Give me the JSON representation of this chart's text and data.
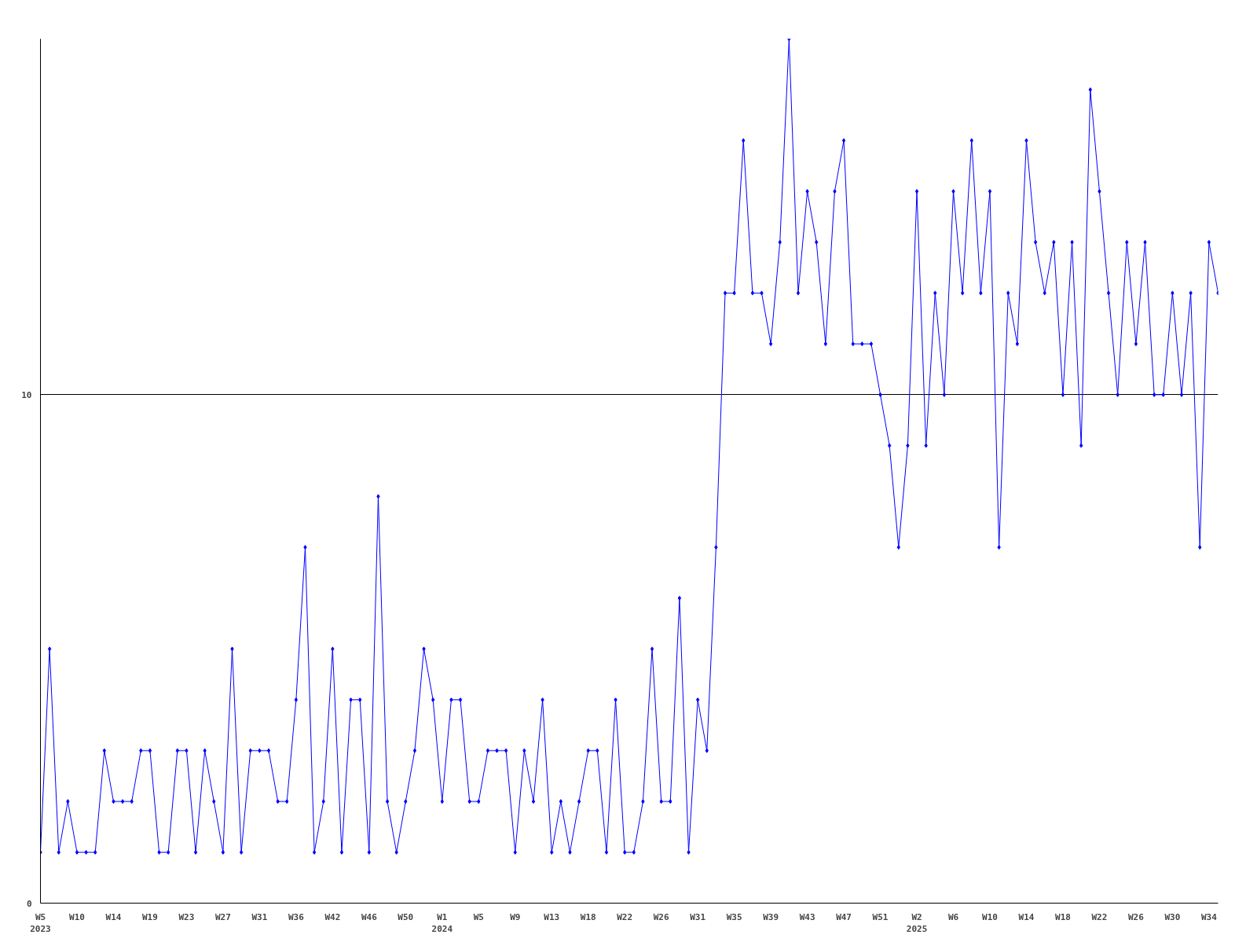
{
  "chart_data": {
    "type": "line",
    "categories": [
      "W5\n2023",
      null,
      null,
      null,
      "W10",
      null,
      null,
      null,
      "W14",
      null,
      null,
      null,
      "W19",
      null,
      null,
      null,
      "W23",
      null,
      null,
      null,
      "W27",
      null,
      null,
      null,
      "W31",
      null,
      null,
      null,
      "W36",
      null,
      null,
      null,
      "W42",
      null,
      null,
      null,
      "W46",
      null,
      null,
      null,
      "W50",
      null,
      null,
      null,
      "W1\n2024",
      null,
      null,
      null,
      "W5",
      null,
      null,
      null,
      "W9",
      null,
      null,
      null,
      "W13",
      null,
      null,
      null,
      "W18",
      null,
      null,
      null,
      "W22",
      null,
      null,
      null,
      "W26",
      null,
      null,
      null,
      "W31",
      null,
      null,
      null,
      "W35",
      null,
      null,
      null,
      "W39",
      null,
      null,
      null,
      "W43",
      null,
      null,
      null,
      "W47",
      null,
      null,
      null,
      "W51",
      null,
      null,
      null,
      "W2\n2025",
      null,
      null,
      null,
      "W6",
      null,
      null,
      null,
      "W10",
      null,
      null,
      null,
      "W14",
      null,
      null,
      null,
      "W18",
      null,
      null,
      null,
      "W22",
      null,
      null,
      null,
      "W26",
      null,
      null,
      null,
      "W30",
      null,
      null,
      null,
      "W34",
      null
    ],
    "series": [
      {
        "color": "#0000ff",
        "values": [
          1,
          5,
          1,
          2,
          1,
          1,
          1,
          3,
          2,
          2,
          2,
          3,
          3,
          1,
          1,
          3,
          3,
          1,
          3,
          2,
          1,
          5,
          1,
          3,
          3,
          3,
          2,
          2,
          4,
          7,
          1,
          2,
          5,
          1,
          4,
          4,
          1,
          8,
          2,
          1,
          2,
          3,
          5,
          4,
          2,
          4,
          4,
          2,
          2,
          3,
          3,
          3,
          1,
          3,
          2,
          4,
          1,
          2,
          1,
          2,
          3,
          3,
          1,
          4,
          1,
          1,
          2,
          5,
          2,
          2,
          6,
          1,
          4,
          3,
          7,
          12,
          12,
          15,
          12,
          12,
          11,
          13,
          17,
          12,
          14,
          13,
          11,
          14,
          15,
          11,
          11,
          11,
          10,
          9,
          7,
          9,
          14,
          9,
          12,
          10,
          14,
          12,
          15,
          12,
          14,
          7,
          12,
          11,
          15,
          13,
          12,
          13,
          10,
          13,
          9,
          16,
          14,
          12,
          10,
          13,
          11,
          13,
          10,
          10,
          12,
          10,
          12,
          7,
          13,
          12
        ]
      }
    ],
    "ylim": [
      0,
      17
    ],
    "yticks": [
      0,
      10
    ],
    "grid": "y",
    "marker": "diamond",
    "line_style": "solid"
  }
}
